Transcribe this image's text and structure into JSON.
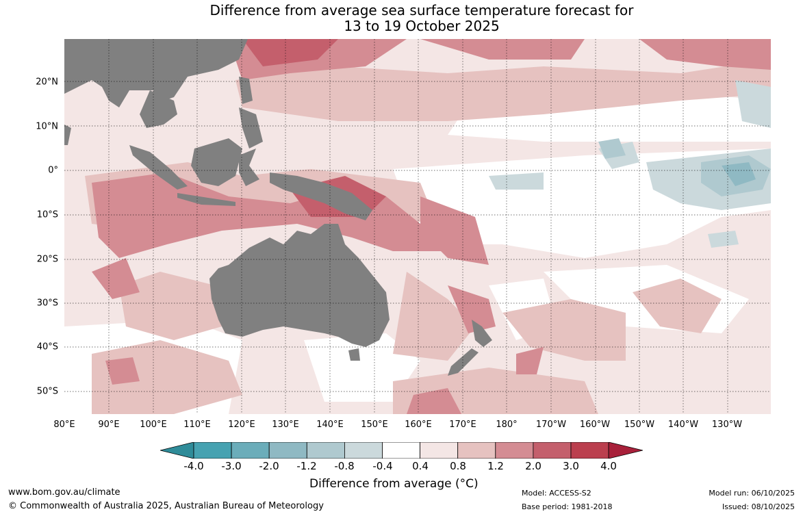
{
  "title": {
    "line1": "Difference from average sea surface temperature forecast for",
    "line2": "13 to 19 October 2025"
  },
  "map": {
    "lat_labels": [
      "20°N",
      "10°N",
      "0°",
      "10°S",
      "20°S",
      "30°S",
      "40°S",
      "50°S"
    ],
    "lon_labels": [
      "80°E",
      "90°E",
      "100°E",
      "110°E",
      "120°E",
      "130°E",
      "140°E",
      "150°E",
      "160°E",
      "170°E",
      "180°",
      "170°W",
      "160°W",
      "150°W",
      "140°W",
      "130°W"
    ],
    "land_color": "#808080"
  },
  "colorbar": {
    "ticks": [
      "-4.0",
      "-3.0",
      "-2.0",
      "-1.2",
      "-0.8",
      "-0.4",
      "0.4",
      "0.8",
      "1.2",
      "2.0",
      "3.0",
      "4.0"
    ],
    "colors": [
      "#2f8c99",
      "#46a2b1",
      "#6badba",
      "#8fb9c3",
      "#afc9cf",
      "#cbd9dc",
      "#ffffff",
      "#f4e6e5",
      "#e6c2c0",
      "#d48c93",
      "#c45f6c",
      "#bb3f4e",
      "#a8203a"
    ],
    "label": "Difference from average (°C)"
  },
  "footer": {
    "website": "www.bom.gov.au/climate",
    "copyright": "© Commonwealth of Australia 2025, Australian Bureau of Meteorology",
    "model": "Model: ACCESS-S2",
    "base_period": "Base period: 1981-2018",
    "model_run": "Model run: 06/10/2025",
    "issued": "Issued: 08/10/2025"
  }
}
